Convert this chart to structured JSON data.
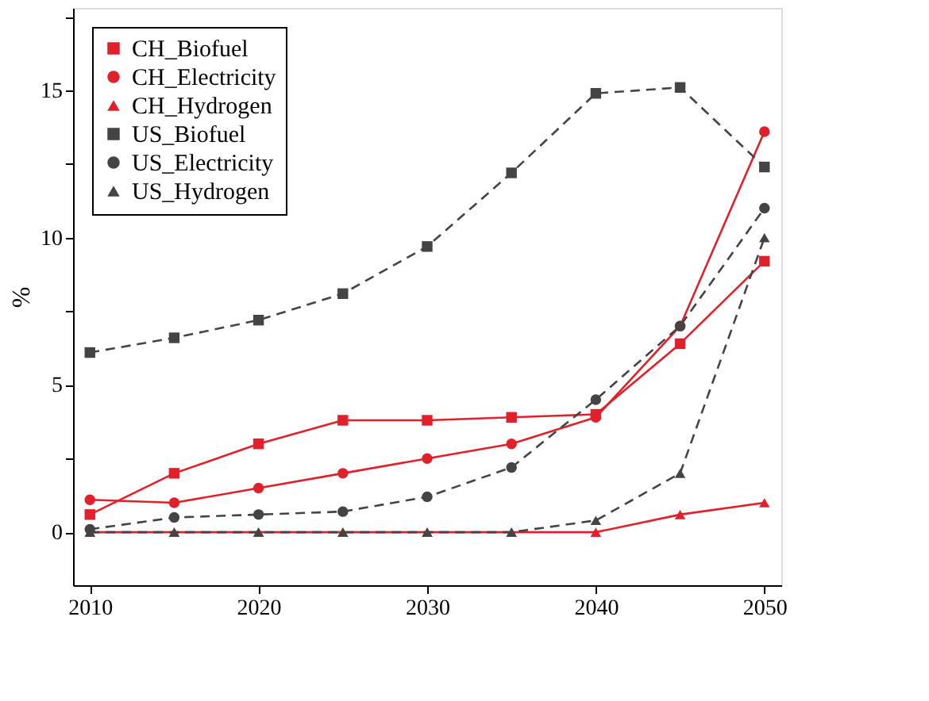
{
  "chart_data": {
    "type": "line",
    "ylabel": "%",
    "x": [
      2010,
      2015,
      2020,
      2025,
      2030,
      2035,
      2040,
      2045,
      2050
    ],
    "xlim": [
      2009,
      2051
    ],
    "xticks": [
      2010,
      2020,
      2030,
      2040,
      2050
    ],
    "ylim": [
      -1.8,
      17.8
    ],
    "yticks": [
      0,
      {
        "value": 2.5,
        "label": null
      },
      5,
      {
        "value": 7.5,
        "label": null
      },
      10,
      {
        "value": 12.5,
        "label": null
      },
      15,
      {
        "value": 17.5,
        "label": null
      }
    ],
    "grid": false,
    "legend": "top left",
    "series": [
      {
        "name": "CH_Biofuel",
        "color": "#e0202a",
        "marker": "square",
        "line_style": "solid",
        "values": [
          0.6,
          2.0,
          3.0,
          3.8,
          3.8,
          3.9,
          4.0,
          6.4,
          9.2
        ]
      },
      {
        "name": "CH_Electricity",
        "color": "#e0202a",
        "marker": "circle",
        "line_style": "solid",
        "values": [
          1.1,
          1.0,
          1.5,
          2.0,
          2.5,
          3.0,
          3.9,
          7.0,
          13.6
        ]
      },
      {
        "name": "CH_Hydrogen",
        "color": "#e0202a",
        "marker": "triangle",
        "line_style": "solid",
        "values": [
          0,
          0,
          0,
          0,
          0,
          0,
          0,
          0.6,
          1.0
        ]
      },
      {
        "name": "US_Biofuel",
        "color": "#444444",
        "marker": "square",
        "line_style": "dashed",
        "values": [
          6.1,
          6.6,
          7.2,
          8.1,
          9.7,
          12.2,
          14.9,
          15.1,
          12.4
        ]
      },
      {
        "name": "US_Electricity",
        "color": "#444444",
        "marker": "circle",
        "line_style": "dashed",
        "values": [
          0.1,
          0.5,
          0.6,
          0.7,
          1.2,
          2.2,
          4.5,
          7.0,
          11.0
        ]
      },
      {
        "name": "US_Hydrogen",
        "color": "#444444",
        "marker": "triangle",
        "line_style": "dashed",
        "values": [
          0,
          0,
          0,
          0,
          0,
          0,
          0.4,
          2.0,
          10.0
        ]
      }
    ]
  }
}
